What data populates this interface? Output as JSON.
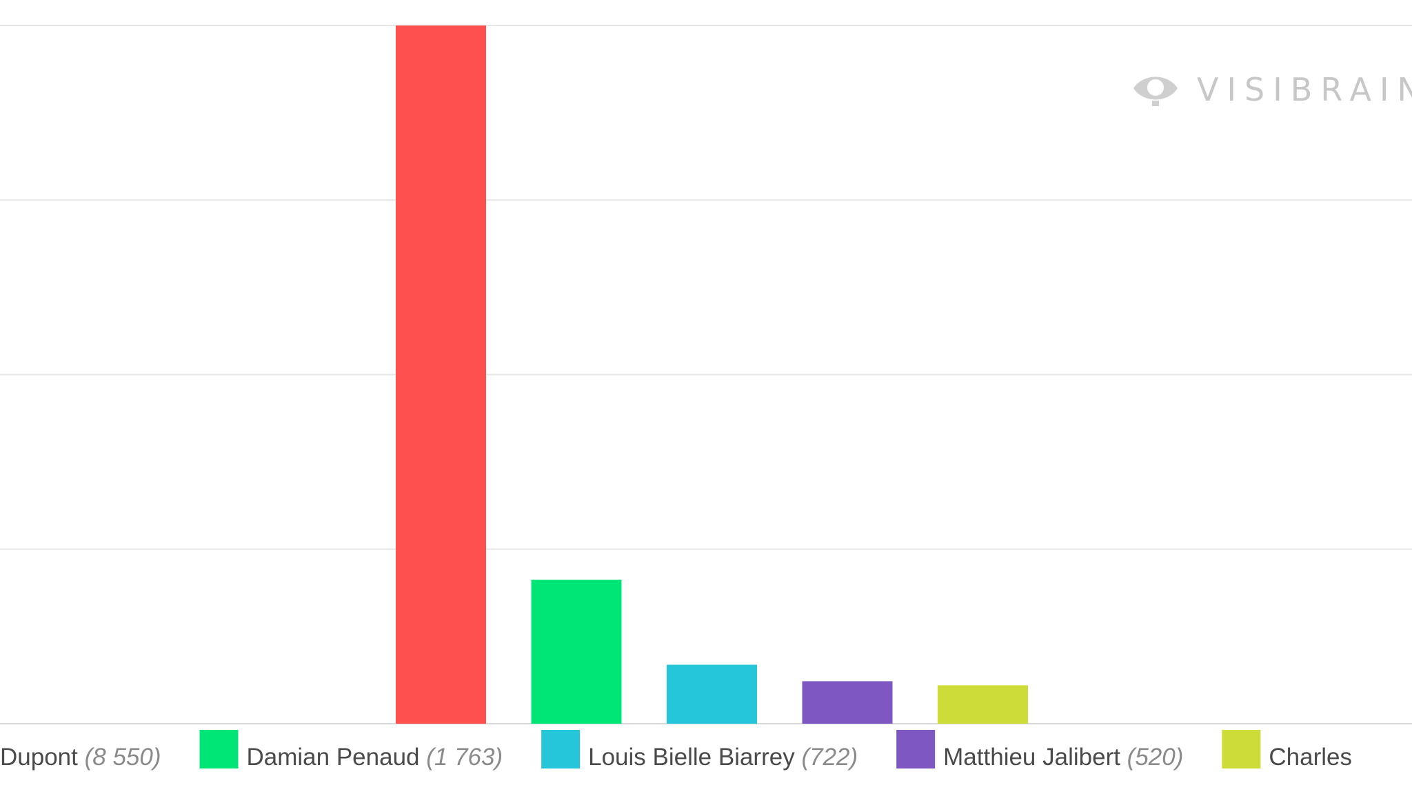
{
  "watermark": {
    "text": "VISIBRAIN",
    "icon": "eye-icon"
  },
  "chart_data": {
    "type": "bar",
    "title": "",
    "xlabel": "",
    "ylabel": "",
    "grid": true,
    "legend_position": "bottom",
    "ylim": [
      0,
      8550
    ],
    "series": [
      {
        "name": "Dupont",
        "count_label": "(8 550)",
        "value": 8550,
        "color": "#ff5050"
      },
      {
        "name": "Damian Penaud",
        "count_label": "(1 763)",
        "value": 1763,
        "color": "#00e676"
      },
      {
        "name": "Louis Bielle Biarrey",
        "count_label": "(722)",
        "value": 722,
        "color": "#26c6da"
      },
      {
        "name": "Matthieu Jalibert",
        "count_label": "(520)",
        "value": 520,
        "color": "#7e57c2"
      },
      {
        "name": "Charles",
        "count_label": "",
        "value": 470,
        "color": "#cddc39"
      }
    ]
  }
}
